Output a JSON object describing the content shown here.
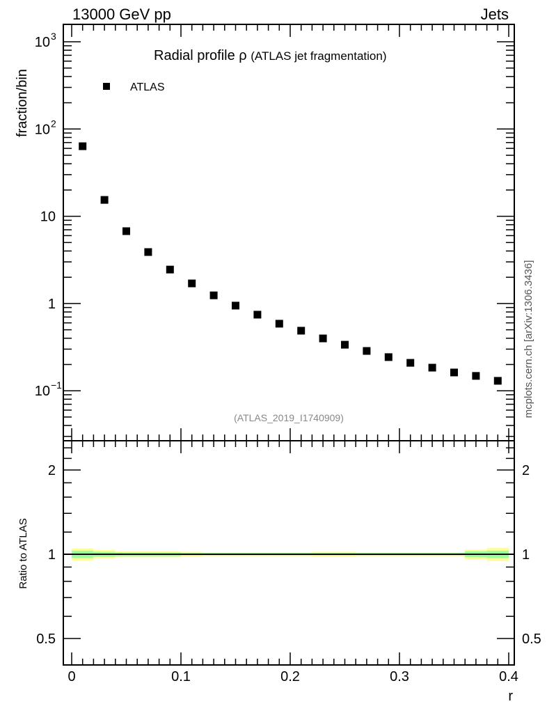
{
  "header": {
    "left": "13000 GeV pp",
    "right": "Jets"
  },
  "side_label": "mcplots.cern.ch [arXiv:1306.3436]",
  "analysis_id": "(ATLAS_2019_I1740909)",
  "colors": {
    "marker": "#000000",
    "band_outer": "#ffff99",
    "band_inner": "#99ff99",
    "analysis_id": "#888888"
  },
  "chart_data": [
    {
      "type": "scatter",
      "title": "Radial profile ρ",
      "title_suffix": "(ATLAS jet fragmentation)",
      "ylabel": "fraction/bin",
      "xlabel": "r",
      "yscale": "log",
      "xlim": [
        -0.02,
        0.405
      ],
      "ylim": [
        0.0266,
        1585
      ],
      "yticks": [
        {
          "v": 1000,
          "base": "10",
          "exp": "3"
        },
        {
          "v": 100,
          "base": "10",
          "exp": "2"
        },
        {
          "v": 10,
          "base": "10",
          "exp": ""
        },
        {
          "v": 1,
          "base": "1",
          "exp": ""
        },
        {
          "v": 0.1,
          "base": "10",
          "exp": "−1"
        }
      ],
      "legend": [
        {
          "name": "ATLAS",
          "marker": "square"
        }
      ],
      "legend_position": "top-left",
      "series": [
        {
          "name": "ATLAS",
          "x": [
            0.01,
            0.03,
            0.05,
            0.07,
            0.09,
            0.11,
            0.13,
            0.15,
            0.17,
            0.19,
            0.21,
            0.23,
            0.25,
            0.27,
            0.29,
            0.31,
            0.33,
            0.35,
            0.37,
            0.39
          ],
          "y": [
            63.5,
            15.4,
            6.75,
            3.89,
            2.45,
            1.7,
            1.24,
            0.946,
            0.745,
            0.587,
            0.488,
            0.398,
            0.337,
            0.286,
            0.243,
            0.209,
            0.184,
            0.162,
            0.148,
            0.13
          ]
        }
      ]
    },
    {
      "type": "line",
      "ylabel": "Ratio to ATLAS",
      "xlabel": "r",
      "yscale": "log2",
      "ylim": [
        0.4,
        2.54
      ],
      "yticks": [
        "2",
        "1",
        "0.5"
      ],
      "ytick_values": [
        2,
        1,
        0.5
      ],
      "xticks": [
        "0",
        "0.1",
        "0.2",
        "0.3",
        "0.4"
      ],
      "xtick_values": [
        0,
        0.1,
        0.2,
        0.3,
        0.4
      ],
      "bin_edges": [
        0,
        0.02,
        0.04,
        0.06,
        0.08,
        0.1,
        0.12,
        0.14,
        0.16,
        0.18,
        0.2,
        0.22,
        0.24,
        0.26,
        0.28,
        0.3,
        0.32,
        0.34,
        0.36,
        0.38,
        0.4
      ],
      "band_outer": [
        0.05,
        0.035,
        0.025,
        0.025,
        0.025,
        0.02,
        0.015,
        0.015,
        0.015,
        0.015,
        0.015,
        0.02,
        0.02,
        0.015,
        0.015,
        0.015,
        0.015,
        0.015,
        0.04,
        0.055
      ],
      "band_inner": [
        0.03,
        0.02,
        0.015,
        0.015,
        0.015,
        0.01,
        0.01,
        0.01,
        0.01,
        0.01,
        0.01,
        0.01,
        0.01,
        0.01,
        0.01,
        0.01,
        0.01,
        0.01,
        0.025,
        0.03
      ],
      "reference": 1
    }
  ]
}
